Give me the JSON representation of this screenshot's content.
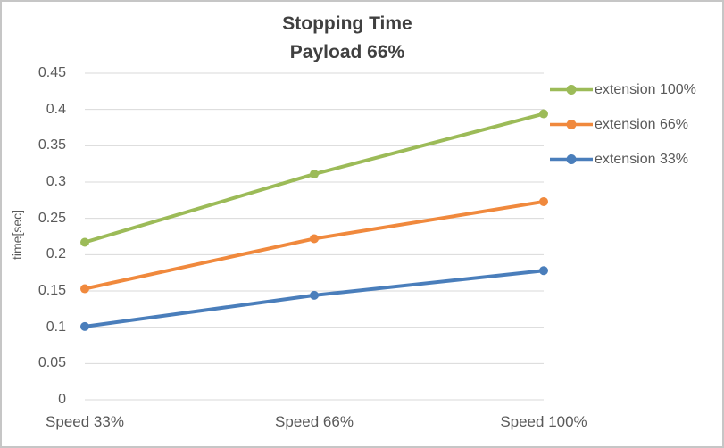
{
  "chart_data": {
    "type": "line",
    "title": "Stopping Time",
    "subtitle": "Payload 66%",
    "ylabel": "time[sec]",
    "xlabel": "",
    "categories": [
      "Speed 33%",
      "Speed 66%",
      "Speed 100%"
    ],
    "series": [
      {
        "name": "extension 100%",
        "color": "#9CBB58",
        "values": [
          0.217,
          0.311,
          0.394
        ]
      },
      {
        "name": "extension 66%",
        "color": "#F0893D",
        "values": [
          0.153,
          0.222,
          0.273
        ]
      },
      {
        "name": "extension 33%",
        "color": "#4A7EBB",
        "values": [
          0.101,
          0.144,
          0.178
        ]
      }
    ],
    "ylim": [
      0,
      0.45
    ],
    "ytick_step": 0.05,
    "ytick_labels": [
      "0",
      "0.05",
      "0.1",
      "0.15",
      "0.2",
      "0.25",
      "0.3",
      "0.35",
      "0.4",
      "0.45"
    ],
    "grid": "horizontal",
    "gridline_color": "#D9D9D9",
    "axis_text_color": "#595959",
    "title_color": "#404040",
    "legend_position": "right-top"
  }
}
